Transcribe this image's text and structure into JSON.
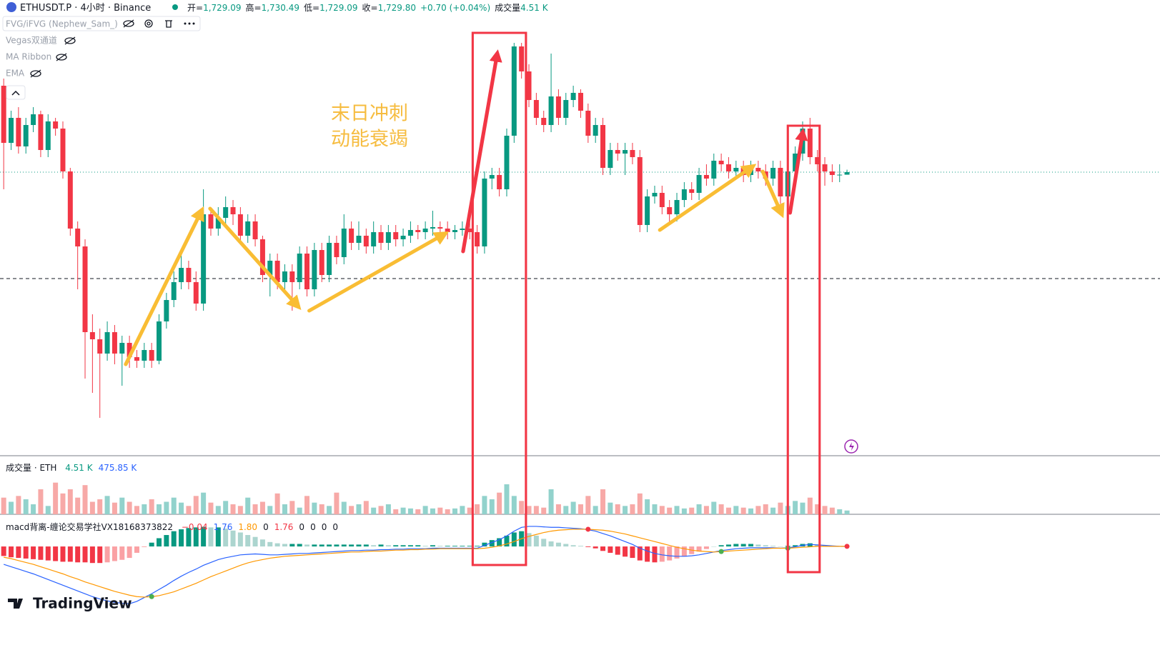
{
  "header": {
    "symbol": "ETHUSDT.P · 4小时 · Binance",
    "ohlc": [
      {
        "label": "开=",
        "value": "1,729.09"
      },
      {
        "label": "高=",
        "value": "1,730.49"
      },
      {
        "label": "低=",
        "value": "1,729.09"
      },
      {
        "label": "收=",
        "value": "1,729.80"
      }
    ],
    "change": "+0.70 (+0.04%)",
    "volume_label": "成交量",
    "volume_value": "4.51 K"
  },
  "indicators": [
    "FVG/iFVG (Nephew_Sam_)",
    "Vegas双通道",
    "MA Ribbon",
    "EMA"
  ],
  "annotations": [
    "末日冲刺",
    "动能衰竭"
  ],
  "volume_legend": {
    "name": "成交量 · ETH",
    "values": [
      "4.51 K",
      "475.85 K"
    ]
  },
  "macd_legend": {
    "name": "macd背离-缠论交易学社VX18168373822",
    "values": [
      "−0.04",
      "1.76",
      "1.80",
      "0",
      "1.76",
      "0",
      "0",
      "0",
      "0"
    ]
  },
  "logo": "TradingView",
  "chart_data": [
    {
      "type": "candlestick",
      "up_color": "#089981",
      "down_color": "#f23645",
      "ylim": [
        1650,
        1778
      ],
      "hline": 1700,
      "candles": [
        [
          1754,
          1756,
          1725,
          1738
        ],
        [
          1738,
          1747,
          1736,
          1745
        ],
        [
          1745,
          1748,
          1735,
          1737
        ],
        [
          1737,
          1745,
          1735,
          1743
        ],
        [
          1743,
          1748,
          1741,
          1746
        ],
        [
          1746,
          1747,
          1734,
          1736
        ],
        [
          1736,
          1746,
          1734,
          1744
        ],
        [
          1744,
          1745,
          1740,
          1742
        ],
        [
          1742,
          1744,
          1728,
          1730
        ],
        [
          1730,
          1731,
          1712,
          1714
        ],
        [
          1714,
          1716,
          1697,
          1709
        ],
        [
          1709,
          1711,
          1672,
          1685
        ],
        [
          1685,
          1690,
          1668,
          1683
        ],
        [
          1683,
          1686,
          1661,
          1679
        ],
        [
          1679,
          1688,
          1677,
          1685
        ],
        [
          1685,
          1687,
          1676,
          1679
        ],
        [
          1679,
          1684,
          1670,
          1682
        ],
        [
          1682,
          1684,
          1675,
          1678
        ],
        [
          1678,
          1680,
          1675,
          1677
        ],
        [
          1677,
          1682,
          1675,
          1680
        ],
        [
          1680,
          1682,
          1675,
          1677
        ],
        [
          1677,
          1690,
          1676,
          1688
        ],
        [
          1688,
          1696,
          1686,
          1694
        ],
        [
          1694,
          1702,
          1692,
          1699
        ],
        [
          1699,
          1708,
          1697,
          1703
        ],
        [
          1703,
          1705,
          1697,
          1699
        ],
        [
          1699,
          1702,
          1691,
          1693
        ],
        [
          1693,
          1725,
          1691,
          1718
        ],
        [
          1718,
          1720,
          1712,
          1714
        ],
        [
          1714,
          1720,
          1712,
          1717
        ],
        [
          1717,
          1723,
          1715,
          1720
        ],
        [
          1720,
          1722,
          1715,
          1718
        ],
        [
          1718,
          1720,
          1710,
          1712
        ],
        [
          1712,
          1718,
          1710,
          1716
        ],
        [
          1716,
          1718,
          1709,
          1711
        ],
        [
          1711,
          1712,
          1699,
          1701
        ],
        [
          1701,
          1707,
          1695,
          1705
        ],
        [
          1705,
          1707,
          1697,
          1699
        ],
        [
          1699,
          1704,
          1697,
          1702
        ],
        [
          1702,
          1704,
          1691,
          1699
        ],
        [
          1699,
          1709,
          1697,
          1707
        ],
        [
          1707,
          1709,
          1695,
          1697
        ],
        [
          1697,
          1710,
          1695,
          1708
        ],
        [
          1708,
          1710,
          1699,
          1701
        ],
        [
          1701,
          1712,
          1699,
          1710
        ],
        [
          1710,
          1712,
          1704,
          1706
        ],
        [
          1706,
          1718,
          1704,
          1714
        ],
        [
          1714,
          1716,
          1708,
          1710
        ],
        [
          1710,
          1716,
          1708,
          1712
        ],
        [
          1712,
          1714,
          1707,
          1709
        ],
        [
          1709,
          1716,
          1707,
          1713
        ],
        [
          1713,
          1715,
          1708,
          1710
        ],
        [
          1710,
          1715,
          1708,
          1713
        ],
        [
          1713,
          1715,
          1709,
          1711
        ],
        [
          1711,
          1714,
          1709,
          1712
        ],
        [
          1712,
          1716,
          1710,
          1713.6
        ],
        [
          1713.6,
          1715,
          1711,
          1713
        ],
        [
          1713,
          1716,
          1711,
          1714
        ],
        [
          1714,
          1719,
          1712,
          1714.4
        ],
        [
          1714.4,
          1716,
          1712,
          1714
        ],
        [
          1714,
          1716,
          1711,
          1713
        ],
        [
          1713,
          1715,
          1711,
          1713.6
        ],
        [
          1713.6,
          1716,
          1712,
          1714
        ],
        [
          1714,
          1716,
          1711,
          1713
        ],
        [
          1713,
          1715,
          1707,
          1709
        ],
        [
          1709,
          1730,
          1707,
          1728
        ],
        [
          1728,
          1731,
          1725,
          1729
        ],
        [
          1729,
          1731,
          1723,
          1725
        ],
        [
          1725,
          1742,
          1723,
          1740
        ],
        [
          1740,
          1766,
          1738,
          1765
        ],
        [
          1765,
          1766,
          1756,
          1758
        ],
        [
          1758,
          1760,
          1748,
          1750
        ],
        [
          1750,
          1752,
          1743,
          1745
        ],
        [
          1745,
          1747,
          1741,
          1743
        ],
        [
          1743,
          1763,
          1741,
          1751
        ],
        [
          1751,
          1753,
          1743,
          1745
        ],
        [
          1745,
          1752,
          1743,
          1750
        ],
        [
          1750,
          1754,
          1748,
          1752
        ],
        [
          1752,
          1753,
          1745,
          1747
        ],
        [
          1747,
          1749,
          1738,
          1740
        ],
        [
          1740,
          1745,
          1738,
          1743
        ],
        [
          1743,
          1745,
          1729,
          1731
        ],
        [
          1731,
          1738,
          1729,
          1736
        ],
        [
          1736,
          1738,
          1733,
          1735
        ],
        [
          1735,
          1738,
          1729,
          1736
        ],
        [
          1736,
          1738,
          1732,
          1734
        ],
        [
          1734,
          1736,
          1713,
          1715
        ],
        [
          1715,
          1725,
          1713,
          1723
        ],
        [
          1723,
          1726,
          1721,
          1724
        ],
        [
          1724,
          1726,
          1718,
          1720
        ],
        [
          1720,
          1722,
          1716,
          1718
        ],
        [
          1718,
          1724,
          1716,
          1722
        ],
        [
          1722,
          1727,
          1720,
          1725
        ],
        [
          1725,
          1727,
          1722,
          1724
        ],
        [
          1724,
          1731,
          1722,
          1729
        ],
        [
          1729,
          1732,
          1726,
          1728
        ],
        [
          1728,
          1735,
          1726,
          1733
        ],
        [
          1733,
          1735,
          1730,
          1732
        ],
        [
          1732,
          1734,
          1728,
          1730
        ],
        [
          1730,
          1733,
          1728,
          1731
        ],
        [
          1731,
          1733,
          1727,
          1729
        ],
        [
          1729,
          1733,
          1727,
          1731
        ],
        [
          1731,
          1733,
          1728,
          1730
        ],
        [
          1730,
          1732,
          1726,
          1728
        ],
        [
          1728,
          1733,
          1726,
          1731
        ],
        [
          1731,
          1733,
          1721,
          1723
        ],
        [
          1723,
          1732,
          1721,
          1730
        ],
        [
          1730,
          1737,
          1728,
          1735
        ],
        [
          1735,
          1744,
          1733,
          1742
        ],
        [
          1742,
          1745,
          1732,
          1734
        ],
        [
          1734,
          1736,
          1730,
          1732
        ],
        [
          1732,
          1734,
          1726,
          1730
        ],
        [
          1730,
          1732,
          1727,
          1729
        ],
        [
          1729,
          1732,
          1727,
          1729.09
        ],
        [
          1729.09,
          1730.49,
          1729.09,
          1729.8
        ]
      ]
    },
    {
      "type": "bar",
      "up_color": "#92d2cc",
      "down_color": "#f7a9a7",
      "ylim": [
        0,
        60
      ],
      "values": [
        20,
        15,
        22,
        18,
        12,
        30,
        10,
        38,
        25,
        30,
        20,
        35,
        15,
        18,
        22,
        14,
        20,
        15,
        10,
        12,
        18,
        12,
        15,
        20,
        14,
        10,
        22,
        26,
        14,
        10,
        16,
        12,
        10,
        20,
        12,
        15,
        10,
        25,
        12,
        16,
        8,
        22,
        14,
        12,
        10,
        26,
        15,
        10,
        12,
        16,
        8,
        10,
        12,
        6,
        8,
        7,
        6,
        10,
        7,
        8,
        6,
        7,
        10,
        8,
        12,
        22,
        18,
        26,
        36,
        22,
        16,
        10,
        10,
        8,
        30,
        12,
        10,
        15,
        12,
        22,
        10,
        30,
        14,
        12,
        10,
        12,
        25,
        18,
        12,
        10,
        8,
        10,
        7,
        8,
        12,
        10,
        15,
        12,
        8,
        10,
        8,
        7,
        10,
        12,
        8,
        14,
        10,
        16,
        14,
        20,
        12,
        10,
        8,
        6,
        4.51
      ]
    },
    {
      "type": "macd",
      "ylim": [
        -19,
        7.8
      ],
      "hist_ylim": [
        -15.5,
        4.5
      ],
      "dif_color": "#2962ff",
      "dea_color": "#ff9800",
      "dif": [
        -2,
        -2.5,
        -3,
        -3.5,
        -4,
        -4.6,
        -5.2,
        -5.8,
        -6.4,
        -7,
        -7.6,
        -8.2,
        -8.8,
        -9.3,
        -9.7,
        -10,
        -10.2,
        -10.3,
        -9.8,
        -9,
        -8.2,
        -7.3,
        -6.4,
        -5.4,
        -4.5,
        -3.7,
        -3,
        -2.2,
        -1.6,
        -1,
        -0.6,
        -0.3,
        0,
        0.1,
        0.2,
        0.1,
        0,
        0,
        0.1,
        0.2,
        0.3,
        0.3,
        0.4,
        0.5,
        0.6,
        0.7,
        0.8,
        0.9,
        0.9,
        1,
        1,
        1.1,
        1.1,
        1.2,
        1.2,
        1.3,
        1.3,
        1.3,
        1.4,
        1.4,
        1.4,
        1.4,
        1.4,
        1.4,
        1.4,
        2,
        2.6,
        3.2,
        4,
        5,
        5.8,
        6,
        6,
        5.9,
        5.8,
        5.8,
        5.7,
        5.6,
        5.5,
        5.3,
        5,
        4.5,
        4,
        3.4,
        2.8,
        2.2,
        1.4,
        0.8,
        0.3,
        0,
        -0.2,
        -0.3,
        -0.3,
        -0.2,
        0,
        0.3,
        0.6,
        0.9,
        1.1,
        1.3,
        1.4,
        1.5,
        1.5,
        1.5,
        1.5,
        1.4,
        1.5,
        1.7,
        2,
        2.2,
        2.1,
        2,
        1.9,
        1.8,
        1.76
      ],
      "dea": [
        -0.5,
        -0.8,
        -1.2,
        -1.6,
        -2,
        -2.5,
        -3,
        -3.5,
        -4,
        -4.6,
        -5.1,
        -5.7,
        -6.2,
        -6.7,
        -7.2,
        -7.7,
        -8.1,
        -8.5,
        -8.8,
        -8.9,
        -8.8,
        -8.6,
        -8.2,
        -7.8,
        -7.2,
        -6.6,
        -6,
        -5.3,
        -4.6,
        -4,
        -3.4,
        -2.8,
        -2.2,
        -1.7,
        -1.3,
        -1,
        -0.7,
        -0.5,
        -0.3,
        -0.2,
        -0.1,
        0,
        0.1,
        0.2,
        0.3,
        0.4,
        0.5,
        0.6,
        0.6,
        0.7,
        0.8,
        0.8,
        0.9,
        1,
        1,
        1.1,
        1.1,
        1.2,
        1.2,
        1.3,
        1.3,
        1.3,
        1.3,
        1.3,
        1.3,
        1.4,
        1.6,
        1.9,
        2.3,
        2.8,
        3.4,
        3.9,
        4.3,
        4.7,
        5,
        5.2,
        5.3,
        5.4,
        5.4,
        5.4,
        5.3,
        5.2,
        5,
        4.7,
        4.4,
        4,
        3.6,
        3.2,
        2.8,
        2.4,
        2,
        1.6,
        1.3,
        1,
        0.8,
        0.7,
        0.6,
        0.7,
        0.8,
        0.9,
        1,
        1.1,
        1.2,
        1.3,
        1.4,
        1.4,
        1.4,
        1.5,
        1.6,
        1.7,
        1.8,
        1.8,
        1.8,
        1.8,
        1.8
      ],
      "hist": [
        -1.5,
        -1.7,
        -1.8,
        -1.9,
        -2,
        -2.1,
        -2.2,
        -2.3,
        -2.4,
        -2.4,
        -2.5,
        -2.5,
        -2.6,
        -2.6,
        -2.5,
        -2.3,
        -2.1,
        -1.8,
        -1,
        -0.1,
        0.6,
        1.3,
        1.8,
        2.4,
        2.7,
        2.9,
        3,
        3.1,
        3,
        3,
        2.8,
        2.5,
        2.2,
        1.8,
        1.5,
        1.1,
        0.7,
        0.5,
        0.4,
        0.4,
        0.4,
        0.3,
        0.3,
        0.3,
        0.3,
        0.3,
        0.3,
        0.3,
        0.3,
        0.3,
        0.2,
        0.3,
        0.2,
        0.2,
        0.2,
        0.2,
        0.2,
        0.1,
        0.2,
        0.1,
        0.1,
        0.1,
        0.1,
        0.1,
        0.1,
        0.6,
        1,
        1.3,
        1.7,
        2.2,
        2.4,
        2.1,
        1.7,
        1.2,
        0.8,
        0.6,
        0.4,
        0.2,
        0.1,
        -0.1,
        -0.3,
        -0.7,
        -1,
        -1.3,
        -1.6,
        -1.8,
        -2.2,
        -2.4,
        -2.5,
        -2.4,
        -2.2,
        -1.9,
        -1.6,
        -1.2,
        -0.8,
        -0.4,
        0,
        0.2,
        0.3,
        0.4,
        0.4,
        0.4,
        0.3,
        0.2,
        0.1,
        0,
        0.1,
        0.2,
        0.4,
        0.5,
        0.3,
        0.2,
        0.1,
        0,
        -0.04
      ]
    }
  ]
}
